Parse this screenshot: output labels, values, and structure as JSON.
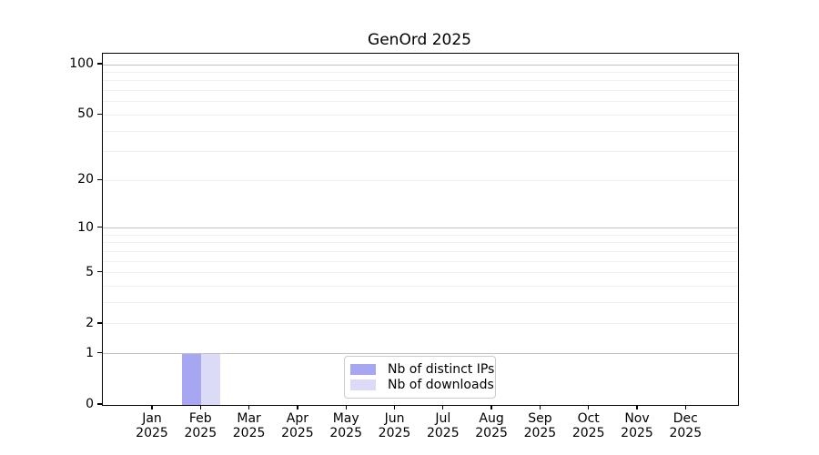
{
  "chart_data": {
    "type": "bar",
    "title": "GenOrd 2025",
    "x_tick_labels": [
      {
        "month": "Jan",
        "year": "2025"
      },
      {
        "month": "Feb",
        "year": "2025"
      },
      {
        "month": "Mar",
        "year": "2025"
      },
      {
        "month": "Apr",
        "year": "2025"
      },
      {
        "month": "May",
        "year": "2025"
      },
      {
        "month": "Jun",
        "year": "2025"
      },
      {
        "month": "Jul",
        "year": "2025"
      },
      {
        "month": "Aug",
        "year": "2025"
      },
      {
        "month": "Sep",
        "year": "2025"
      },
      {
        "month": "Oct",
        "year": "2025"
      },
      {
        "month": "Nov",
        "year": "2025"
      },
      {
        "month": "Dec",
        "year": "2025"
      }
    ],
    "y_scale": "log10(1+x)",
    "ylim": [
      0,
      117
    ],
    "y_tick_values": [
      0,
      1,
      2,
      5,
      10,
      20,
      50,
      100
    ],
    "y_tick_labels": [
      "0",
      "1",
      "2",
      "5",
      "10",
      "20",
      "50",
      "100"
    ],
    "gridlines": {
      "major_values": [
        1,
        10,
        100
      ],
      "minor_values": [
        2,
        3,
        4,
        5,
        6,
        7,
        8,
        9,
        20,
        30,
        40,
        50,
        60,
        70,
        80,
        90
      ],
      "major_color": "#c2c2c2",
      "minor_color": "#f0f0f0"
    },
    "series": [
      {
        "name": "Nb of distinct IPs",
        "color": "#a7a7f1",
        "values": [
          0,
          1,
          0,
          0,
          0,
          0,
          0,
          0,
          0,
          0,
          0,
          0
        ]
      },
      {
        "name": "Nb of downloads",
        "color": "#dbdbf8",
        "values": [
          0,
          1,
          0,
          0,
          0,
          0,
          0,
          0,
          0,
          0,
          0,
          0
        ]
      }
    ],
    "legend_position": "bottom-center"
  }
}
